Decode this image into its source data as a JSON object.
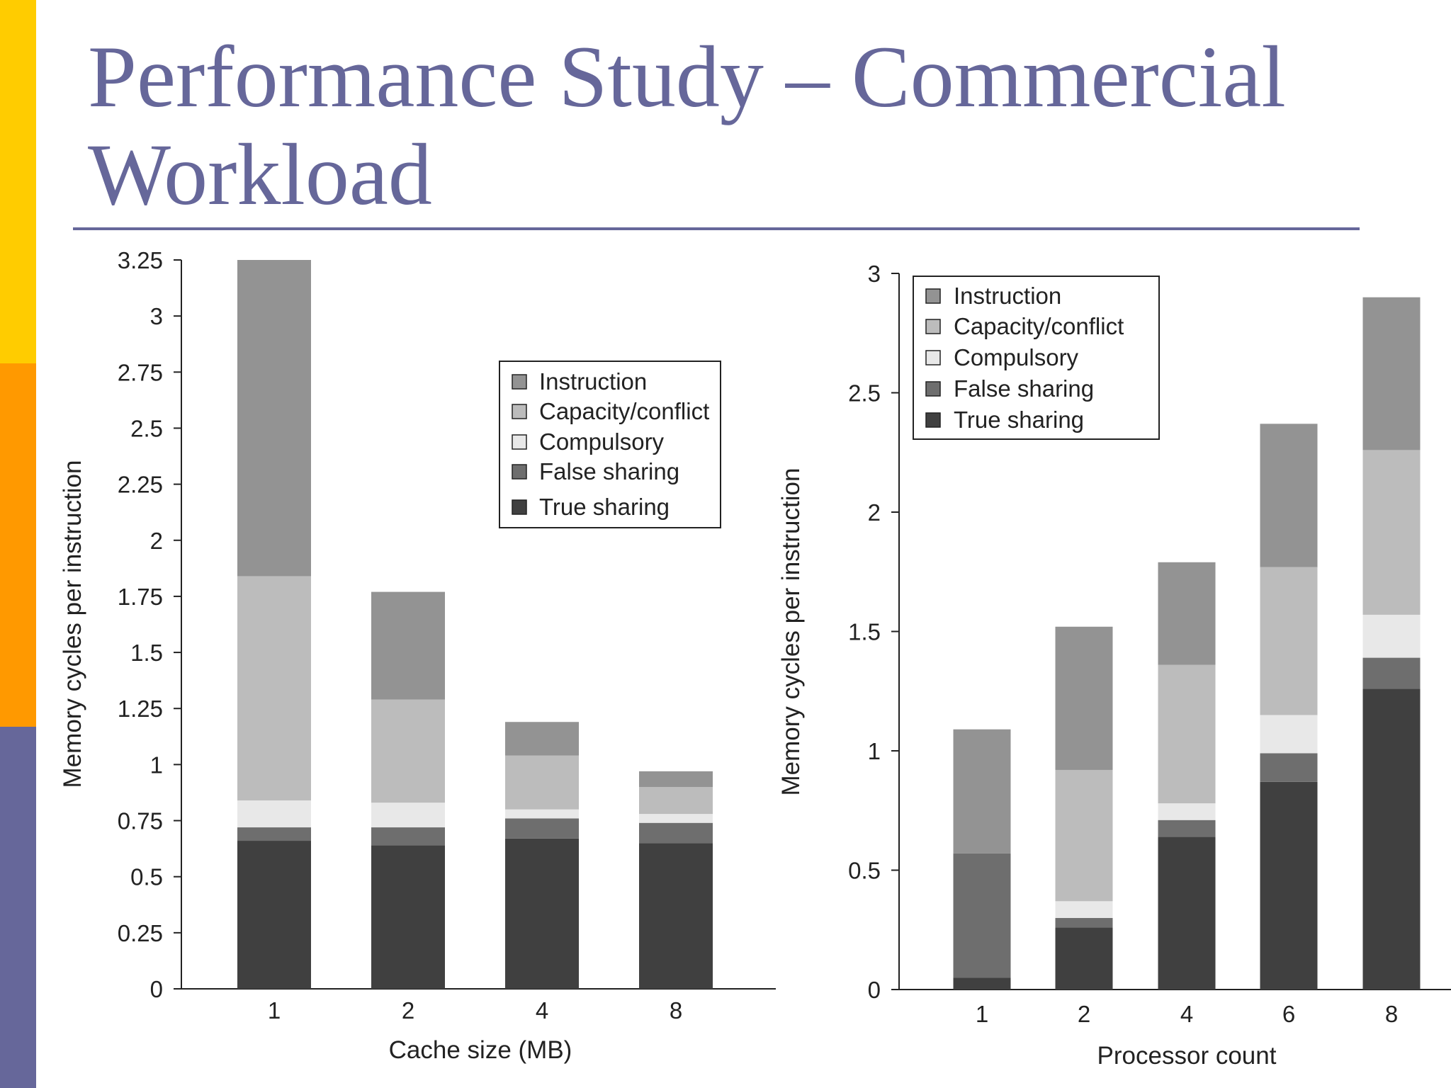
{
  "slide": {
    "title": "Performance Study – Commercial Workload",
    "colors": {
      "title": "#66679a",
      "rule": "#66679a",
      "accent_yellow": "#ffcc00",
      "accent_orange": "#ff9900",
      "accent_purple": "#66679a"
    }
  },
  "chart_data": [
    {
      "type": "bar",
      "stacked": true,
      "title": "",
      "xlabel": "Cache size (MB)",
      "ylabel": "Memory cycles per instruction",
      "categories": [
        "1",
        "2",
        "4",
        "8"
      ],
      "ylim": [
        0,
        3.25
      ],
      "yticks": [
        0,
        0.25,
        0.5,
        0.75,
        1,
        1.25,
        1.5,
        1.75,
        2,
        2.25,
        2.5,
        2.75,
        3,
        3.25
      ],
      "ytick_labels": [
        "0",
        "0.25",
        "0.5",
        "0.75",
        "1",
        "1.25",
        "1.5",
        "1.75",
        "2",
        "2.25",
        "2.5",
        "2.75",
        "3",
        "3.25"
      ],
      "grid": false,
      "legend_position": "top-right",
      "legend_order": [
        "Instruction",
        "Capacity/conflict",
        "Compulsory",
        "False sharing",
        "True sharing"
      ],
      "series": [
        {
          "name": "True sharing",
          "color": "#404040",
          "values": [
            0.66,
            0.64,
            0.67,
            0.65
          ]
        },
        {
          "name": "False sharing",
          "color": "#6e6e6e",
          "values": [
            0.06,
            0.08,
            0.09,
            0.09
          ]
        },
        {
          "name": "Compulsory",
          "color": "#e8e8e8",
          "values": [
            0.12,
            0.11,
            0.04,
            0.04
          ]
        },
        {
          "name": "Capacity/conflict",
          "color": "#bcbcbc",
          "values": [
            1.0,
            0.46,
            0.24,
            0.12
          ]
        },
        {
          "name": "Instruction",
          "color": "#939393",
          "values": [
            1.41,
            0.48,
            0.15,
            0.07
          ]
        }
      ]
    },
    {
      "type": "bar",
      "stacked": true,
      "title": "",
      "xlabel": "Processor count",
      "ylabel": "Memory cycles per instruction",
      "categories": [
        "1",
        "2",
        "4",
        "6",
        "8"
      ],
      "ylim": [
        0,
        3
      ],
      "yticks": [
        0,
        0.5,
        1,
        1.5,
        2,
        2.5,
        3
      ],
      "ytick_labels": [
        "0",
        "0.5",
        "1",
        "1.5",
        "2",
        "2.5",
        "3"
      ],
      "grid": false,
      "legend_position": "top-left",
      "legend_order": [
        "Instruction",
        "Capacity/conflict",
        "Compulsory",
        "False sharing",
        "True sharing"
      ],
      "series": [
        {
          "name": "True sharing",
          "color": "#404040",
          "values": [
            0.05,
            0.26,
            0.64,
            0.87,
            1.26
          ]
        },
        {
          "name": "False sharing",
          "color": "#6e6e6e",
          "values": [
            0.52,
            0.04,
            0.07,
            0.12,
            0.13
          ]
        },
        {
          "name": "Compulsory",
          "color": "#e8e8e8",
          "values": [
            0.0,
            0.07,
            0.07,
            0.16,
            0.18
          ]
        },
        {
          "name": "Capacity/conflict",
          "color": "#bcbcbc",
          "values": [
            0.0,
            0.55,
            0.58,
            0.62,
            0.69
          ]
        },
        {
          "name": "Instruction",
          "color": "#939393",
          "values": [
            0.52,
            0.6,
            0.43,
            0.6,
            0.64
          ]
        }
      ]
    }
  ]
}
